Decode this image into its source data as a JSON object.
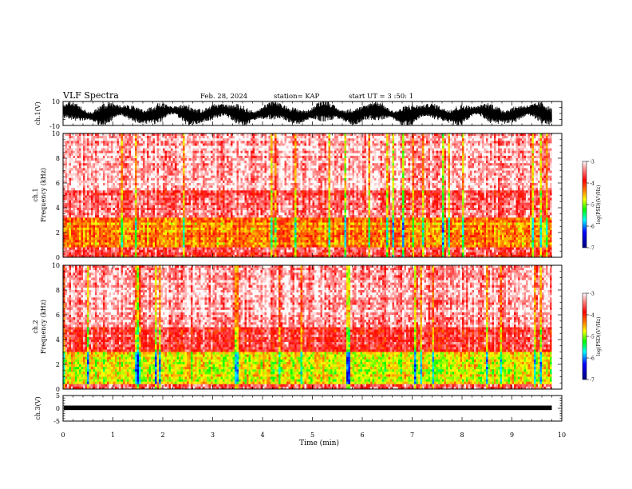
{
  "header": {
    "title": "VLF Spectra",
    "date": "Feb. 28, 2024",
    "station": "station= KAP",
    "start": "start  UT =  3 :50: 1"
  },
  "chart_data": [
    {
      "type": "line",
      "panel": "ch1-waveform",
      "ylabel": "ch.1(V)",
      "ylim": [
        -10,
        10
      ],
      "ytick_labels": [
        "10",
        "-10"
      ],
      "xlim": [
        0,
        10
      ],
      "description_of_series": "dense oscillating waveform between about -9.5 V and 9.5 V from 0 to 9.8 min"
    },
    {
      "type": "heatmap",
      "panel": "ch1-spectrogram",
      "ylabel": "ch.1",
      "ylabel2": "Frequency (kHz)",
      "ylim": [
        0,
        10
      ],
      "yticks": [
        0,
        2,
        4,
        6,
        8,
        10
      ],
      "xlim": [
        0,
        10
      ],
      "data_x_end": 9.8,
      "bands": [
        {
          "from": 0.0,
          "to": 0.8,
          "level": -3.6
        },
        {
          "from": 0.8,
          "to": 3.2,
          "level": -4.3
        },
        {
          "from": 3.2,
          "to": 5.5,
          "level": -3.5
        },
        {
          "from": 5.5,
          "to": 10.0,
          "level": -3.2
        }
      ],
      "colorbar": {
        "label": "log(PSD)(V²/Hz)",
        "min": -7,
        "max": -3,
        "ticks": [
          -3,
          -4,
          -5,
          -6,
          -7
        ]
      }
    },
    {
      "type": "heatmap",
      "panel": "ch2-spectrogram",
      "ylabel": "ch.2",
      "ylabel2": "Frequency (kHz)",
      "ylim": [
        0,
        10
      ],
      "yticks": [
        0,
        2,
        4,
        6,
        8,
        10
      ],
      "xlim": [
        0,
        10
      ],
      "data_x_end": 9.8,
      "bands": [
        {
          "from": 0.0,
          "to": 0.5,
          "level": -3.6
        },
        {
          "from": 0.5,
          "to": 3.0,
          "level": -4.7
        },
        {
          "from": 3.0,
          "to": 5.0,
          "level": -3.6
        },
        {
          "from": 5.0,
          "to": 10.0,
          "level": -3.2
        }
      ],
      "colorbar": {
        "label": "log(PSD)(V²/Hz)",
        "min": -7,
        "max": -3,
        "ticks": [
          -3,
          -4,
          -5,
          -6,
          -7
        ]
      }
    },
    {
      "type": "line",
      "panel": "ch3-waveform",
      "ylabel": "ch.3(V)",
      "ylim": [
        -5,
        5
      ],
      "yticks": [
        5,
        0,
        -5
      ],
      "ytick_labels": [
        "5",
        "0",
        "-5"
      ],
      "xlim": [
        0,
        10
      ],
      "description_of_series": "thick near-constant trace around 0.2 V from 0 to 9.8 min",
      "level": 0.2
    }
  ],
  "xaxis": {
    "label": "Time (min)",
    "ticks": [
      0,
      1,
      2,
      3,
      4,
      5,
      6,
      7,
      8,
      9,
      10
    ]
  },
  "colorbar_label": "log(PSD)(V²/Hz)",
  "colorbar_tick_labels": [
    "-3",
    "-4",
    "-5",
    "-6",
    "-7"
  ],
  "colors": {
    "ink": "#000000",
    "psd_high": "#ff0000",
    "psd_low": "#000080"
  }
}
